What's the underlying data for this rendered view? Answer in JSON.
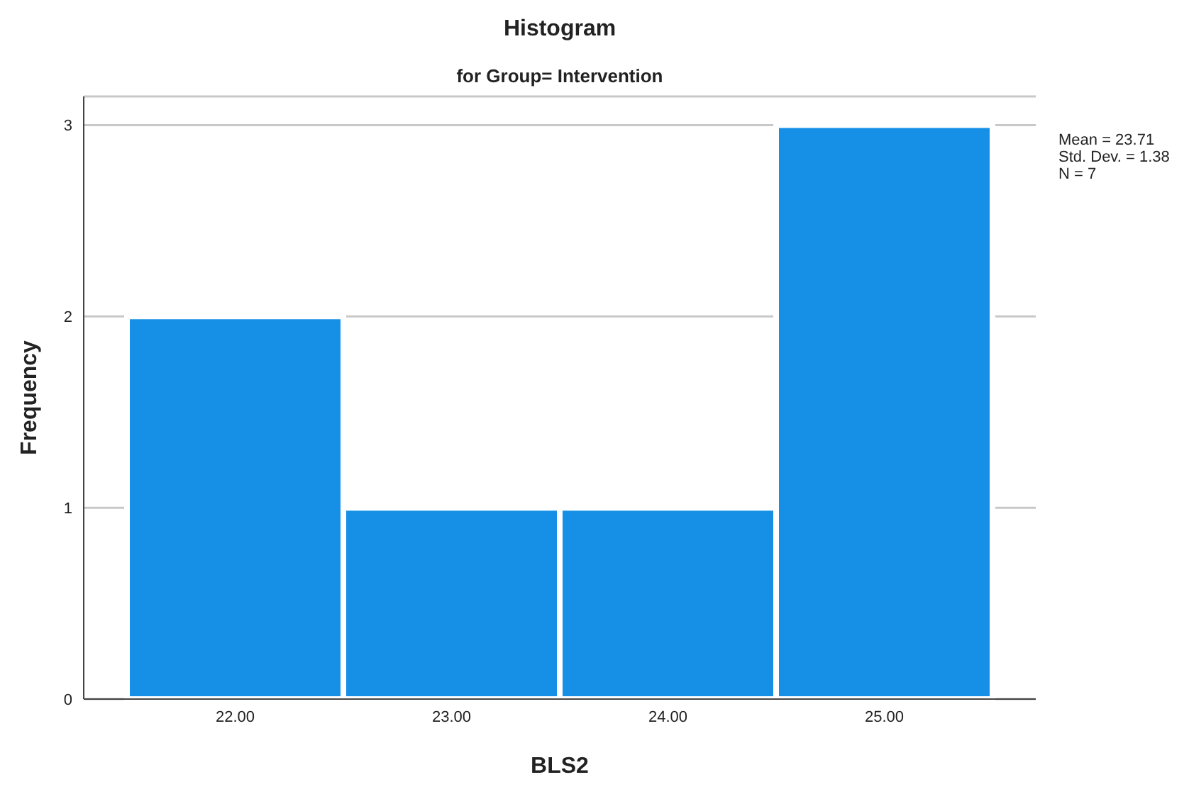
{
  "chart_data": {
    "type": "histogram",
    "title": "Histogram",
    "subtitle": "for Group= Intervention",
    "xlabel": "BLS2",
    "ylabel": "Frequency",
    "bins": [
      21.5,
      22.5,
      23.5,
      24.5,
      25.5
    ],
    "values": [
      2,
      1,
      1,
      3
    ],
    "color": "#1690e6",
    "xlim": [
      21.3,
      25.7
    ],
    "xticks": [
      {
        "value": 22,
        "label": "22.00"
      },
      {
        "value": 23,
        "label": "23.00"
      },
      {
        "value": 24,
        "label": "24.00"
      },
      {
        "value": 25,
        "label": "25.00"
      }
    ],
    "ylim": [
      0,
      3.15
    ],
    "yticks": [
      0,
      1,
      2,
      3
    ],
    "grid": "y",
    "annotations": [
      "Mean = 23.71",
      "Std. Dev. = 1.38",
      "N = 7"
    ]
  }
}
